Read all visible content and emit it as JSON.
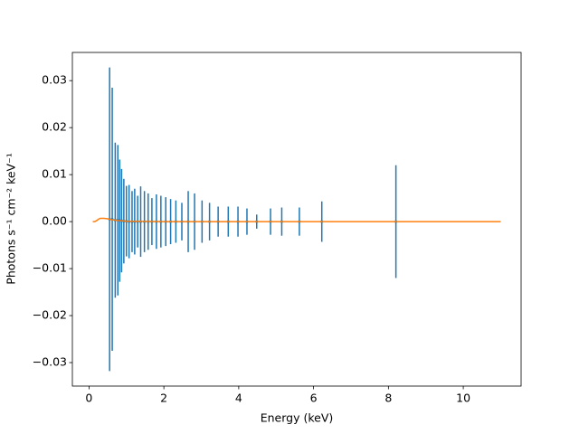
{
  "chart_data": {
    "type": "errorbar",
    "xlabel": "Energy (keV)",
    "ylabel": "Photons s⁻¹ cm⁻² keV⁻¹",
    "xlim": [
      -0.445,
      11.545
    ],
    "ylim": [
      -0.035,
      0.036
    ],
    "xticks": [
      0,
      2,
      4,
      6,
      8,
      10
    ],
    "yticks": [
      {
        "value": -0.03,
        "label": "−0.03"
      },
      {
        "value": -0.02,
        "label": "−0.02"
      },
      {
        "value": -0.01,
        "label": "−0.01"
      },
      {
        "value": 0,
        "label": "0.00"
      },
      {
        "value": 0.01,
        "label": "0.01"
      },
      {
        "value": 0.02,
        "label": "0.02"
      },
      {
        "value": 0.03,
        "label": "0.03"
      }
    ],
    "series": [
      {
        "color": "#1f77b4",
        "x": [
          0.55,
          0.62,
          0.7,
          0.77,
          0.82,
          0.87,
          0.93,
          1.0,
          1.07,
          1.15,
          1.22,
          1.3,
          1.38,
          1.48,
          1.58,
          1.68,
          1.8,
          1.92,
          2.05,
          2.18,
          2.32,
          2.48,
          2.65,
          2.82,
          3.02,
          3.22,
          3.45,
          3.72,
          3.98,
          4.22,
          4.48,
          4.85,
          5.15,
          5.62,
          6.22,
          8.2
        ],
        "values": [
          0.0005,
          0.0005,
          0.0003,
          0.0003,
          0.0002,
          0.0002,
          0.0001,
          0.0001,
          0,
          0,
          0,
          0,
          0,
          0,
          0,
          0,
          0,
          0,
          0,
          0,
          0,
          0,
          0,
          0,
          0,
          0,
          0,
          0,
          0,
          0,
          0,
          0,
          0,
          0,
          0,
          0
        ],
        "errors": [
          0.0323,
          0.028,
          0.0165,
          0.016,
          0.013,
          0.011,
          0.009,
          0.0075,
          0.0078,
          0.0065,
          0.007,
          0.0055,
          0.0075,
          0.0065,
          0.006,
          0.005,
          0.0058,
          0.0055,
          0.0052,
          0.0048,
          0.0045,
          0.004,
          0.0065,
          0.006,
          0.0045,
          0.004,
          0.0032,
          0.0032,
          0.0032,
          0.0028,
          0.0015,
          0.0028,
          0.003,
          0.003,
          0.0043,
          0.012
        ]
      },
      {
        "color": "#ff7f0e",
        "x": [
          0.1,
          0.15,
          0.2,
          0.25,
          0.3,
          0.35,
          0.4,
          0.5,
          0.6,
          0.7,
          0.8,
          1.0,
          1.5,
          2,
          3,
          4,
          6,
          8,
          11
        ],
        "values": [
          0,
          0,
          0.0002,
          0.0005,
          0.0007,
          0.0007,
          0.0007,
          0.0006,
          0.0004,
          0.0003,
          0.0002,
          0.0001,
          5e-05,
          0,
          0,
          0,
          0,
          0,
          0
        ]
      }
    ]
  }
}
